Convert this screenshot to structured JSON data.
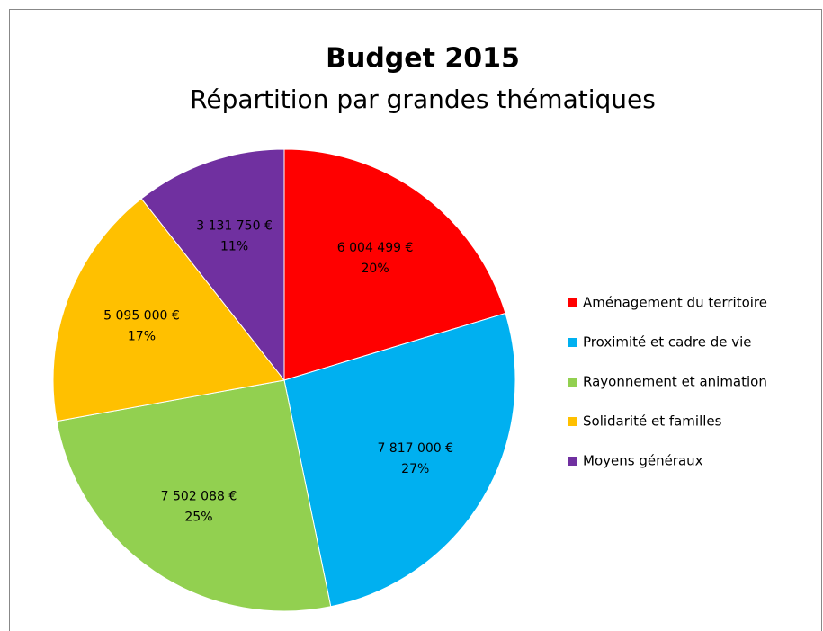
{
  "chart_data": {
    "type": "pie",
    "title": "Budget 2015",
    "subtitle": "Répartition par grandes thématiques",
    "categories": [
      "Aménagement du territoire",
      "Proximité et cadre de vie",
      "Rayonnement et animation",
      "Solidarité et familles",
      "Moyens généraux"
    ],
    "values": [
      6004499,
      7817000,
      7502088,
      5095000,
      3131750
    ],
    "value_labels": [
      "6 004 499 €",
      "7 817 000 €",
      "7 502 088 €",
      "5 095 000 €",
      "3 131 750 €"
    ],
    "percent_labels": [
      "20%",
      "27%",
      "25%",
      "17%",
      "11%"
    ],
    "colors": [
      "#ff0000",
      "#00b0f0",
      "#92d050",
      "#ffc000",
      "#7030a0"
    ],
    "legend": "right"
  }
}
